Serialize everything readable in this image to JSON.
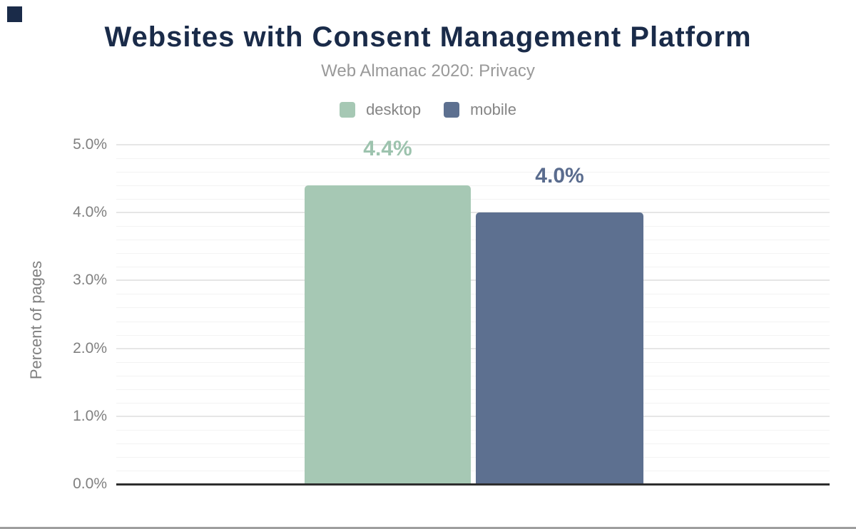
{
  "page": {
    "background": "#ffffff"
  },
  "corner_mark": {
    "color": "#1a2b49"
  },
  "header": {
    "title": "Websites with Consent Management Platform",
    "subtitle": "Web Almanac 2020: Privacy",
    "title_color": "#1a2b49",
    "subtitle_color": "#999999"
  },
  "legend": {
    "text_color": "#858585",
    "items": [
      {
        "label": "desktop",
        "color": "#a6c8b4"
      },
      {
        "label": "mobile",
        "color": "#5d7090"
      }
    ]
  },
  "chart_data": {
    "type": "bar",
    "title": "Websites with Consent Management Platform",
    "subtitle": "Web Almanac 2020: Privacy",
    "categories": [
      "desktop",
      "mobile"
    ],
    "values": [
      4.4,
      4.0
    ],
    "value_labels": [
      "4.4%",
      "4.0%"
    ],
    "series_colors": [
      "#a6c8b4",
      "#5d7090"
    ],
    "value_label_colors": [
      "#9dc3ae",
      "#5a6c8e"
    ],
    "ylabel": "Percent of pages",
    "xlabel": "",
    "ylim": [
      0,
      5
    ],
    "y_major_ticks": [
      "0.0%",
      "1.0%",
      "2.0%",
      "3.0%",
      "4.0%",
      "5.0%"
    ],
    "y_major_step": 1.0,
    "y_minor_step": 0.2,
    "grid": "on",
    "legend_position": "top"
  },
  "axis": {
    "tick_color": "#808080",
    "axis_title_color": "#808080",
    "major_grid_color": "#e6e6e6",
    "minor_grid_color": "#f3f3f3",
    "baseline_color": "#2e2e2e"
  },
  "footer": {
    "divider_color": "#9e9e9e"
  }
}
